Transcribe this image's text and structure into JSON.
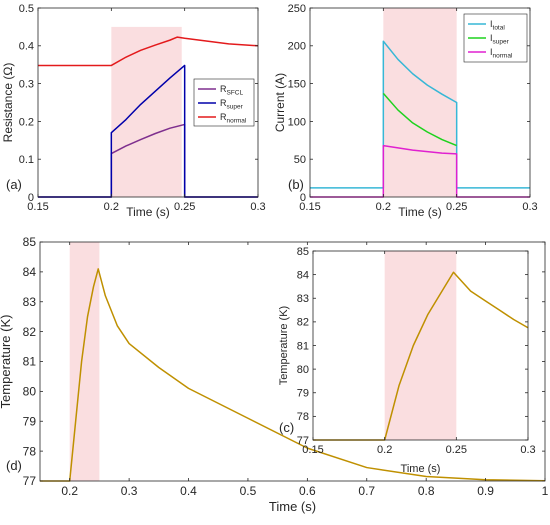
{
  "chart_data": [
    {
      "id": "a",
      "type": "line",
      "panel_label": "(a)",
      "xlabel": "Time (s)",
      "ylabel": "Resistance (Ω)",
      "xlim": [
        0.15,
        0.3
      ],
      "ylim": [
        0,
        0.5
      ],
      "xticks": [
        0.15,
        0.2,
        0.25,
        0.3
      ],
      "yticks": [
        0,
        0.1,
        0.2,
        0.3,
        0.4,
        0.5
      ],
      "xtick_labels": [
        "0.15",
        "0.2",
        "0.25",
        "0.3"
      ],
      "ytick_labels": [
        "0",
        "0.1",
        "0.2",
        "0.3",
        "0.4",
        "0.5"
      ],
      "shaded_region": [
        0.2,
        0.248
      ],
      "shaded_ylim": [
        0,
        0.45
      ],
      "grid": false,
      "legend": {
        "position": "right",
        "entries": [
          {
            "base": "R",
            "sub": "SFCL"
          },
          {
            "base": "R",
            "sub": "super"
          },
          {
            "base": "R",
            "sub": "normal"
          }
        ]
      },
      "series": [
        {
          "name": "R_SFCL",
          "color": "#7E2F8E",
          "points": [
            [
              0.15,
              0
            ],
            [
              0.2,
              0
            ],
            [
              0.2,
              0.115
            ],
            [
              0.21,
              0.135
            ],
            [
              0.22,
              0.152
            ],
            [
              0.23,
              0.168
            ],
            [
              0.24,
              0.182
            ],
            [
              0.25,
              0.192
            ],
            [
              0.25,
              0
            ],
            [
              0.3,
              0
            ]
          ]
        },
        {
          "name": "R_super",
          "color": "#0000AA",
          "points": [
            [
              0.15,
              0
            ],
            [
              0.2,
              0
            ],
            [
              0.2,
              0.17
            ],
            [
              0.21,
              0.205
            ],
            [
              0.22,
              0.245
            ],
            [
              0.23,
              0.28
            ],
            [
              0.24,
              0.315
            ],
            [
              0.25,
              0.348
            ],
            [
              0.25,
              0
            ],
            [
              0.3,
              0
            ]
          ]
        },
        {
          "name": "R_normal",
          "color": "#E31A1C",
          "points": [
            [
              0.15,
              0.348
            ],
            [
              0.2,
              0.348
            ],
            [
              0.21,
              0.37
            ],
            [
              0.22,
              0.388
            ],
            [
              0.23,
              0.402
            ],
            [
              0.24,
              0.415
            ],
            [
              0.245,
              0.423
            ],
            [
              0.25,
              0.42
            ],
            [
              0.26,
              0.415
            ],
            [
              0.27,
              0.41
            ],
            [
              0.28,
              0.405
            ],
            [
              0.3,
              0.4
            ]
          ]
        }
      ]
    },
    {
      "id": "b",
      "type": "line",
      "panel_label": "(b)",
      "xlabel": "Time (s)",
      "ylabel": "Current (A)",
      "xlim": [
        0.15,
        0.3
      ],
      "ylim": [
        0,
        250
      ],
      "xticks": [
        0.15,
        0.2,
        0.25,
        0.3
      ],
      "yticks": [
        0,
        50,
        100,
        150,
        200,
        250
      ],
      "xtick_labels": [
        "0.15",
        "0.2",
        "0.25",
        "0.3"
      ],
      "ytick_labels": [
        "0",
        "50",
        "100",
        "150",
        "200",
        "250"
      ],
      "shaded_region": [
        0.2,
        0.25
      ],
      "shaded_ylim": [
        0,
        250
      ],
      "grid": false,
      "legend": {
        "position": "top-right",
        "entries": [
          {
            "base": "I",
            "sub": "total"
          },
          {
            "base": "I",
            "sub": "super"
          },
          {
            "base": "I",
            "sub": "normal"
          }
        ]
      },
      "series": [
        {
          "name": "I_total",
          "color": "#37B7D6",
          "points": [
            [
              0.15,
              12
            ],
            [
              0.2,
              12
            ],
            [
              0.2,
              206
            ],
            [
              0.21,
              182
            ],
            [
              0.22,
              163
            ],
            [
              0.23,
              148
            ],
            [
              0.24,
              136
            ],
            [
              0.25,
              125
            ],
            [
              0.25,
              12
            ],
            [
              0.3,
              12
            ]
          ]
        },
        {
          "name": "I_super",
          "color": "#1ED21E",
          "points": [
            [
              0.2,
              137
            ],
            [
              0.21,
              115
            ],
            [
              0.22,
              98
            ],
            [
              0.23,
              86
            ],
            [
              0.24,
              76
            ],
            [
              0.25,
              68
            ]
          ]
        },
        {
          "name": "I_normal",
          "color": "#E020D0",
          "points": [
            [
              0.15,
              0
            ],
            [
              0.2,
              0
            ],
            [
              0.2,
              68
            ],
            [
              0.21,
              65
            ],
            [
              0.22,
              62
            ],
            [
              0.23,
              60
            ],
            [
              0.24,
              58
            ],
            [
              0.25,
              57
            ],
            [
              0.25,
              0
            ],
            [
              0.3,
              0
            ]
          ]
        }
      ]
    },
    {
      "id": "d",
      "type": "line",
      "panel_label": "(d)",
      "xlabel": "Time (s)",
      "ylabel": "Temperature (K)",
      "xlim": [
        0.15,
        1
      ],
      "ylim": [
        77,
        85
      ],
      "xticks": [
        0.2,
        0.3,
        0.4,
        0.5,
        0.6,
        0.7,
        0.8,
        0.9,
        1
      ],
      "yticks": [
        77,
        78,
        79,
        80,
        81,
        82,
        83,
        84,
        85
      ],
      "xtick_labels": [
        "0.2",
        "0.3",
        "0.4",
        "0.5",
        "0.6",
        "0.7",
        "0.8",
        "0.9",
        "1"
      ],
      "ytick_labels": [
        "77",
        "78",
        "79",
        "80",
        "81",
        "82",
        "83",
        "84",
        "85"
      ],
      "shaded_region": [
        0.2,
        0.25
      ],
      "shaded_ylim": [
        77,
        85
      ],
      "grid": false,
      "series": [
        {
          "name": "T",
          "color": "#BF9000",
          "points": [
            [
              0.15,
              77
            ],
            [
              0.2,
              77
            ],
            [
              0.21,
              79
            ],
            [
              0.22,
              81
            ],
            [
              0.23,
              82.5
            ],
            [
              0.24,
              83.5
            ],
            [
              0.248,
              84.1
            ],
            [
              0.26,
              83.2
            ],
            [
              0.28,
              82.2
            ],
            [
              0.3,
              81.6
            ],
            [
              0.35,
              80.8
            ],
            [
              0.4,
              80.1
            ],
            [
              0.5,
              79.1
            ],
            [
              0.6,
              78.1
            ],
            [
              0.7,
              77.45
            ],
            [
              0.8,
              77.15
            ],
            [
              0.9,
              77.04
            ],
            [
              1,
              77.01
            ]
          ]
        }
      ]
    },
    {
      "id": "c",
      "type": "line",
      "panel_label": "(c)",
      "xlabel": "Time (s)",
      "ylabel": "Temperature (K)",
      "xlim": [
        0.15,
        0.3
      ],
      "ylim": [
        77,
        85
      ],
      "xticks": [
        0.15,
        0.2,
        0.25,
        0.3
      ],
      "yticks": [
        77,
        78,
        79,
        80,
        81,
        82,
        83,
        84,
        85
      ],
      "xtick_labels": [
        "0.15",
        "0.2",
        "0.25",
        "0.3"
      ],
      "ytick_labels": [
        "77",
        "78",
        "79",
        "80",
        "81",
        "82",
        "83",
        "84",
        "85"
      ],
      "shaded_region": [
        0.2,
        0.25
      ],
      "shaded_ylim": [
        77,
        85
      ],
      "grid": false,
      "series": [
        {
          "name": "T",
          "color": "#BF9000",
          "points": [
            [
              0.15,
              77
            ],
            [
              0.2,
              77
            ],
            [
              0.21,
              79.3
            ],
            [
              0.22,
              81
            ],
            [
              0.23,
              82.3
            ],
            [
              0.24,
              83.3
            ],
            [
              0.248,
              84.1
            ],
            [
              0.26,
              83.3
            ],
            [
              0.27,
              82.9
            ],
            [
              0.28,
              82.5
            ],
            [
              0.29,
              82.1
            ],
            [
              0.3,
              81.75
            ]
          ]
        }
      ]
    }
  ]
}
